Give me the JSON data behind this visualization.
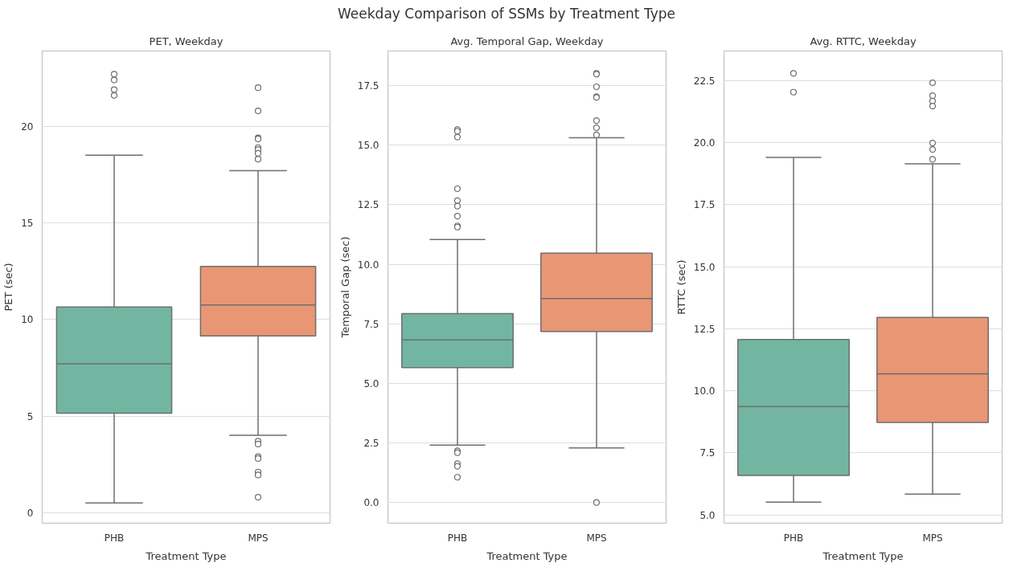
{
  "chart_data": [
    {
      "type": "box",
      "title": "PET, Weekday",
      "xlabel": "Treatment Type",
      "ylabel": "PET (sec)",
      "annotations": [
        "Weekday Comparison of SSMs by Treatment Type"
      ],
      "categories": [
        "PHB",
        "MPS"
      ],
      "colors": [
        "#72b6a1",
        "#e99675"
      ],
      "grid": "y",
      "ylim": [
        -0.55,
        23.9
      ],
      "yticks": [
        0,
        5,
        10,
        15,
        20
      ],
      "boxes": [
        {
          "low": 0.5,
          "q1": 5.15,
          "median": 7.7,
          "q3": 10.65,
          "high": 18.5,
          "outliers": [
            22.7,
            22.4,
            21.9,
            21.6
          ]
        },
        {
          "low": 4.0,
          "q1": 9.15,
          "median": 10.75,
          "q3": 12.75,
          "high": 17.7,
          "outliers": [
            22.0,
            20.8,
            19.4,
            19.35,
            18.9,
            18.8,
            18.6,
            18.3,
            3.7,
            3.55,
            2.9,
            2.8,
            2.1,
            1.95,
            0.8
          ]
        }
      ]
    },
    {
      "type": "box",
      "title": "Avg. Temporal Gap, Weekday",
      "xlabel": "Treatment Type",
      "ylabel": "Temporal Gap (sec)",
      "categories": [
        "PHB",
        "MPS"
      ],
      "colors": [
        "#72b6a1",
        "#e99675"
      ],
      "grid": "y",
      "ylim": [
        -0.87,
        18.95
      ],
      "yticks": [
        {
          "value": 0,
          "label": "0.0"
        },
        2.5,
        {
          "value": 5,
          "label": "5.0"
        },
        7.5,
        {
          "value": 10,
          "label": "10.0"
        },
        12.5,
        {
          "value": 15,
          "label": "15.0"
        },
        17.5
      ],
      "boxes": [
        {
          "low": 2.41,
          "q1": 5.66,
          "median": 6.82,
          "q3": 7.93,
          "high": 11.04,
          "outliers": [
            15.65,
            15.58,
            15.34,
            13.17,
            12.67,
            12.44,
            12.02,
            11.61,
            11.56,
            2.17,
            2.09,
            1.63,
            1.52,
            1.06
          ]
        },
        {
          "low": 2.29,
          "q1": 7.18,
          "median": 8.56,
          "q3": 10.46,
          "high": 15.31,
          "outliers": [
            18.01,
            17.98,
            17.45,
            17.03,
            17.0,
            16.03,
            15.73,
            15.43,
            0.0
          ]
        }
      ]
    },
    {
      "type": "box",
      "title": "Avg. RTTC, Weekday",
      "xlabel": "Treatment Type",
      "ylabel": "RTTC (sec)",
      "categories": [
        "PHB",
        "MPS"
      ],
      "colors": [
        "#72b6a1",
        "#e99675"
      ],
      "grid": "y",
      "ylim": [
        4.66,
        23.7
      ],
      "yticks": [
        {
          "value": 5,
          "label": "5.0"
        },
        7.5,
        {
          "value": 10,
          "label": "10.0"
        },
        12.5,
        {
          "value": 15,
          "label": "15.0"
        },
        17.5,
        {
          "value": 20,
          "label": "20.0"
        },
        22.5
      ],
      "boxes": [
        {
          "low": 5.51,
          "q1": 6.59,
          "median": 9.36,
          "q3": 12.07,
          "high": 19.41,
          "outliers": [
            22.8,
            22.04
          ]
        },
        {
          "low": 5.83,
          "q1": 8.72,
          "median": 10.68,
          "q3": 12.96,
          "high": 19.15,
          "outliers": [
            22.42,
            21.9,
            21.68,
            21.48,
            19.99,
            19.73,
            19.33
          ]
        }
      ]
    }
  ]
}
